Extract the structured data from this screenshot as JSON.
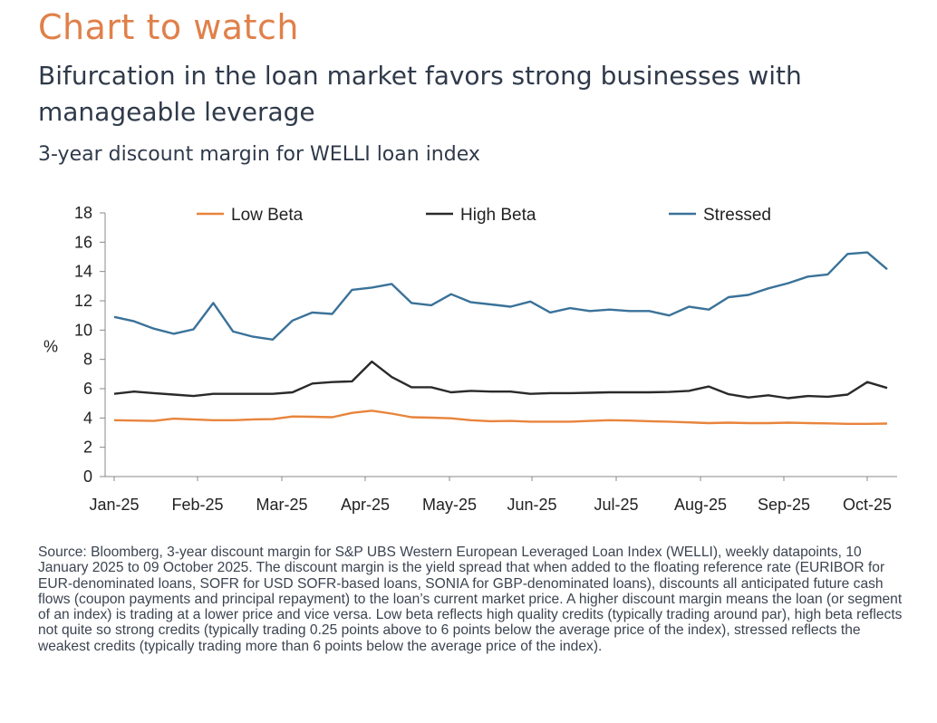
{
  "kicker": "Chart to watch",
  "headline": "Bifurcation in the loan market favors strong businesses with manageable leverage",
  "subtitle": "3-year discount margin for WELLI loan index",
  "source": "Source: Bloomberg, 3-year discount margin for S&P UBS Western European Leveraged Loan Index (WELLI), weekly datapoints, 10 January 2025 to 09 October 2025. The discount margin is the yield spread that when added to the floating reference rate (EURIBOR for EUR-denominated loans, SOFR for USD SOFR-based loans, SONIA for GBP-denominated loans), discounts all anticipated future cash flows (coupon payments and principal repayment) to the loan’s current market price.  A higher discount margin means the loan (or segment of an index) is trading at a lower price and vice versa. Low beta reflects high quality credits (typically trading around par), high beta reflects not quite so strong credits (typically trading 0.25 points above to 6 points below the average price of the index), stressed reflects the weakest credits (typically trading more than 6 points below the average price of the index).",
  "chart_data": {
    "type": "line",
    "title": "3-year discount margin for WELLI loan index",
    "ylabel": "%",
    "xlabel": "",
    "ylim": [
      0,
      18
    ],
    "yticks": [
      0,
      2,
      4,
      6,
      8,
      10,
      12,
      14,
      16,
      18
    ],
    "x_tick_labels": [
      "Jan-25",
      "Feb-25",
      "Mar-25",
      "Apr-25",
      "May-25",
      "Jun-25",
      "Jul-25",
      "Aug-25",
      "Sep-25",
      "Oct-25"
    ],
    "x": [
      "2025-01-10",
      "2025-01-17",
      "2025-01-24",
      "2025-01-31",
      "2025-02-07",
      "2025-02-14",
      "2025-02-21",
      "2025-02-28",
      "2025-03-07",
      "2025-03-14",
      "2025-03-21",
      "2025-03-28",
      "2025-04-04",
      "2025-04-11",
      "2025-04-18",
      "2025-04-25",
      "2025-05-02",
      "2025-05-09",
      "2025-05-16",
      "2025-05-23",
      "2025-05-30",
      "2025-06-06",
      "2025-06-13",
      "2025-06-20",
      "2025-06-27",
      "2025-07-04",
      "2025-07-11",
      "2025-07-18",
      "2025-07-25",
      "2025-08-01",
      "2025-08-08",
      "2025-08-15",
      "2025-08-22",
      "2025-08-29",
      "2025-09-05",
      "2025-09-12",
      "2025-09-19",
      "2025-09-26",
      "2025-10-03",
      "2025-10-09"
    ],
    "legend_position": "top",
    "grid": false,
    "series": [
      {
        "name": "Low Beta",
        "color": "#e8843c",
        "values": [
          3.85,
          3.82,
          3.8,
          3.95,
          3.9,
          3.85,
          3.85,
          3.9,
          3.92,
          4.1,
          4.08,
          4.05,
          4.35,
          4.5,
          4.3,
          4.05,
          4.02,
          3.98,
          3.85,
          3.78,
          3.8,
          3.75,
          3.75,
          3.75,
          3.8,
          3.85,
          3.82,
          3.78,
          3.75,
          3.7,
          3.65,
          3.68,
          3.65,
          3.65,
          3.68,
          3.65,
          3.63,
          3.6,
          3.6,
          3.62
        ]
      },
      {
        "name": "High Beta",
        "color": "#2a2a2a",
        "values": [
          5.65,
          5.8,
          5.7,
          5.6,
          5.5,
          5.65,
          5.65,
          5.65,
          5.65,
          5.75,
          6.35,
          6.45,
          6.5,
          7.85,
          6.8,
          6.1,
          6.1,
          5.75,
          5.85,
          5.8,
          5.8,
          5.65,
          5.7,
          5.7,
          5.72,
          5.75,
          5.75,
          5.75,
          5.78,
          5.85,
          6.15,
          5.62,
          5.4,
          5.55,
          5.35,
          5.5,
          5.45,
          5.6,
          6.45,
          6.05
        ]
      },
      {
        "name": "Stressed",
        "color": "#3a7299",
        "values": [
          10.9,
          10.6,
          10.1,
          9.75,
          10.05,
          11.85,
          9.9,
          9.55,
          9.35,
          10.65,
          11.2,
          11.1,
          12.75,
          12.9,
          13.15,
          11.85,
          11.7,
          12.45,
          11.9,
          11.75,
          11.6,
          11.95,
          11.2,
          11.5,
          11.3,
          11.4,
          11.3,
          11.3,
          11.0,
          11.6,
          11.4,
          12.25,
          12.4,
          12.85,
          13.2,
          13.65,
          13.8,
          15.2,
          15.3,
          14.15
        ]
      }
    ]
  }
}
